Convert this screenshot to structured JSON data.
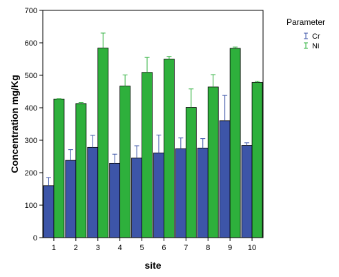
{
  "chart_data": {
    "type": "bar",
    "title": "",
    "xlabel": "site",
    "ylabel": "Concentration mg/Kg",
    "ylim": [
      0,
      700
    ],
    "yticks": [
      0,
      100,
      200,
      300,
      400,
      500,
      600,
      700
    ],
    "categories": [
      "1",
      "2",
      "3",
      "4",
      "5",
      "6",
      "7",
      "8",
      "9",
      "10"
    ],
    "legend_title": "Parameter",
    "legend_position": "top-right",
    "grid": false,
    "error_bars": "upper",
    "series": [
      {
        "name": "Cr",
        "color": "#3d55a8",
        "values": [
          160,
          238,
          278,
          229,
          245,
          261,
          274,
          276,
          360,
          284
        ],
        "errors": [
          25,
          33,
          37,
          28,
          38,
          55,
          33,
          29,
          78,
          8
        ]
      },
      {
        "name": "Ni",
        "color": "#2eb03c",
        "values": [
          427,
          413,
          584,
          467,
          509,
          550,
          401,
          464,
          583,
          478
        ],
        "errors": [
          1,
          3,
          46,
          34,
          46,
          8,
          57,
          38,
          4,
          4
        ]
      }
    ]
  }
}
